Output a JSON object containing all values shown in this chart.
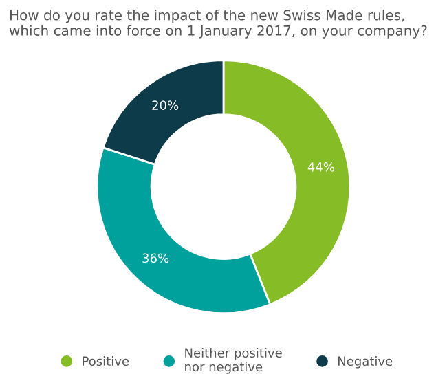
{
  "chart_data": {
    "type": "donut",
    "title": "How do you rate the impact of the new Swiss Made rules, which came into force on 1 January 2017, on your company?",
    "categories": [
      "Positive",
      "Neither positive\nnor negative",
      "Negative"
    ],
    "values": [
      44,
      36,
      20
    ],
    "colors": [
      "#86bc25",
      "#00a09d",
      "#0d3b4a"
    ],
    "value_labels": [
      "44%",
      "36%",
      "20%"
    ],
    "legend": "bottom"
  }
}
